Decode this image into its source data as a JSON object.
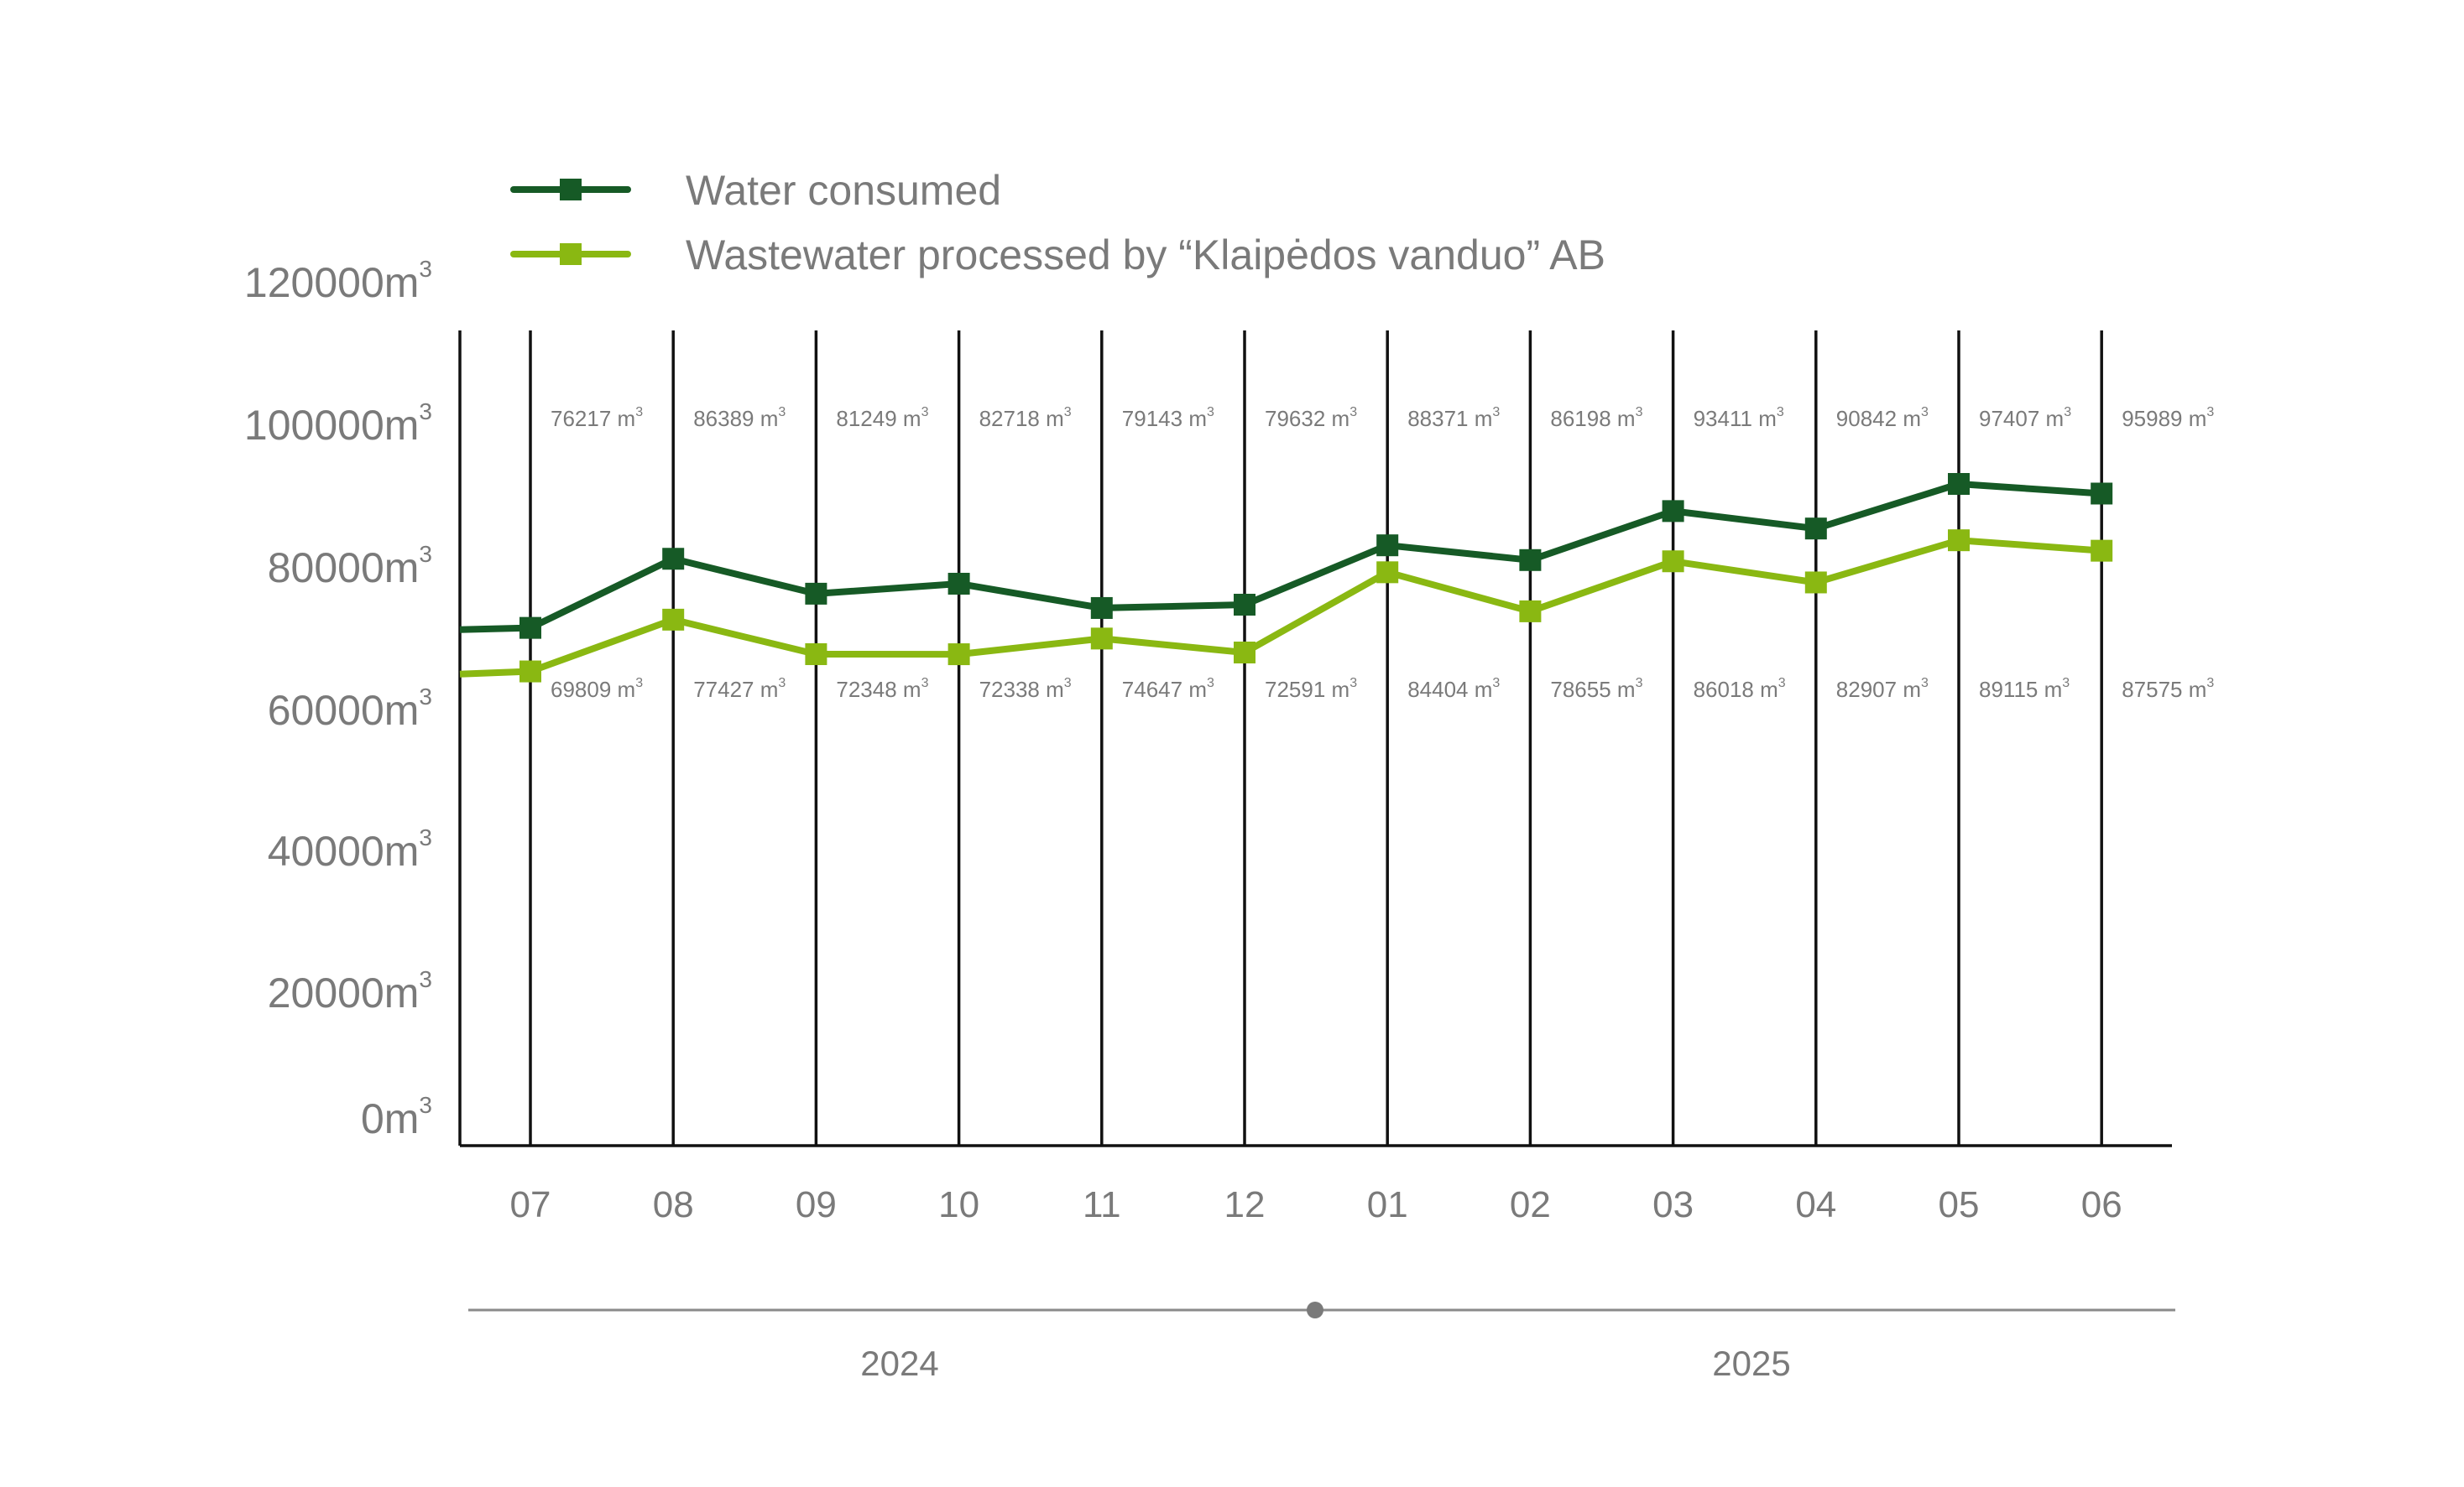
{
  "chart_data": {
    "type": "line",
    "title": "",
    "xlabel": "",
    "ylabel": "",
    "unit": "m",
    "unit_exponent": "3",
    "categories": [
      "07",
      "08",
      "09",
      "10",
      "11",
      "12",
      "01",
      "02",
      "03",
      "04",
      "05",
      "06"
    ],
    "years": [
      "2024",
      "2025"
    ],
    "ylim": [
      0,
      120000
    ],
    "yticks": [
      "0",
      "20000",
      "40000",
      "60000",
      "80000",
      "100000",
      "120000"
    ],
    "grid": "vertical",
    "legend_position": "top-left",
    "series": [
      {
        "name": "Water consumed",
        "color": "#165a26",
        "values": [
          76217,
          86389,
          81249,
          82718,
          79143,
          79632,
          88371,
          86198,
          93411,
          90842,
          97407,
          95989
        ],
        "labels": [
          "76217",
          "86389",
          "81249",
          "82718",
          "79143",
          "79632",
          "88371",
          "86198",
          "93411",
          "90842",
          "97407",
          "95989"
        ]
      },
      {
        "name": "Wastewater processed by “Klaipėdos vanduo” AB",
        "color": "#8ab812",
        "values": [
          69809,
          77427,
          72348,
          72338,
          74647,
          72591,
          84404,
          78655,
          86018,
          82907,
          89115,
          87575
        ],
        "labels": [
          "69809",
          "77427",
          "72348",
          "72338",
          "74647",
          "72591",
          "84404",
          "78655",
          "86018",
          "82907",
          "89115",
          "87575"
        ]
      }
    ]
  }
}
